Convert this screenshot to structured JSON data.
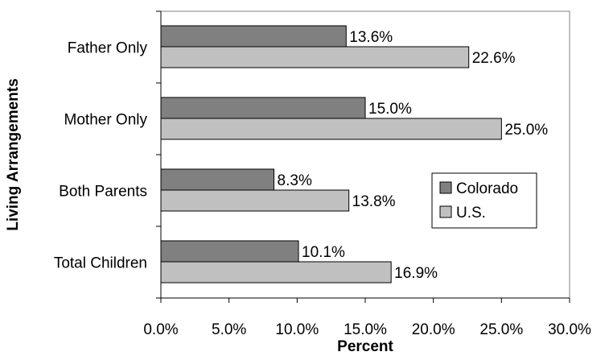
{
  "chart_data": {
    "type": "bar",
    "orientation": "horizontal",
    "title": "",
    "xlabel": "Percent",
    "ylabel": "Living Arrangements",
    "categories": [
      "Father Only",
      "Mother Only",
      "Both Parents",
      "Total Children"
    ],
    "series": [
      {
        "name": "Colorado",
        "values": [
          13.6,
          15.0,
          8.3,
          10.1
        ],
        "color": "#808080"
      },
      {
        "name": "U.S.",
        "values": [
          22.6,
          25.0,
          13.8,
          16.9
        ],
        "color": "#c0c0c0"
      }
    ],
    "xlim": [
      0,
      30
    ],
    "xticks": [
      0,
      5,
      10,
      15,
      20,
      25,
      30
    ],
    "xtick_labels": [
      "0.0%",
      "5.0%",
      "10.0%",
      "15.0%",
      "20.0%",
      "25.0%",
      "30.0%"
    ],
    "data_labels": [
      [
        "13.6%",
        "15.0%",
        "8.3%",
        "10.1%"
      ],
      [
        "22.6%",
        "25.0%",
        "13.8%",
        "16.9%"
      ]
    ],
    "legend_position": "right",
    "grid": false
  }
}
